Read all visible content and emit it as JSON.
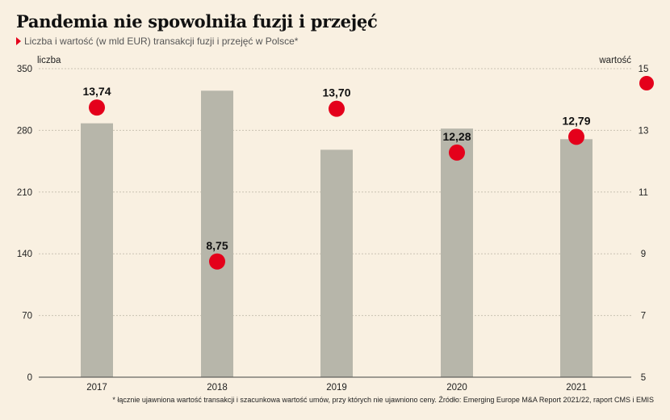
{
  "title": "Pandemia nie spowolniła fuzji i przejęć",
  "subtitle": "Liczba i wartość (w mld EUR) transakcji fuzji i przejęć w Polsce*",
  "footnote": "* łącznie ujawniona wartość transakcji i szacunkowa wartość umów, przy których nie ujawniono ceny. Źródło: Emerging Europe  M&A Report 2021/22, raport CMS i EMIS",
  "colors": {
    "bar": "#b7b6aa",
    "dot": "#e4001b",
    "grid": "#c9c2b3",
    "background": "#f9f0e1"
  },
  "chart_data": {
    "type": "bar",
    "categories": [
      "2017",
      "2018",
      "2019",
      "2020",
      "2021"
    ],
    "series": [
      {
        "name": "liczba",
        "type": "bar",
        "axis": "left",
        "values": [
          288,
          325,
          258,
          282,
          270
        ]
      },
      {
        "name": "wartość",
        "type": "scatter",
        "axis": "right",
        "values": [
          13.74,
          8.75,
          13.7,
          12.28,
          12.79
        ],
        "labels": [
          "13,74",
          "8,75",
          "13,70",
          "12,28",
          "12,79"
        ]
      }
    ],
    "ylabel_left": "liczba",
    "ylabel_right": "wartość",
    "ylim_left": [
      0,
      350
    ],
    "yticks_left": [
      "0",
      "70",
      "140",
      "210",
      "280",
      "350"
    ],
    "ylim_right": [
      5,
      15
    ],
    "yticks_right": [
      "5",
      "7",
      "9",
      "11",
      "13",
      "15"
    ],
    "grid": true
  }
}
